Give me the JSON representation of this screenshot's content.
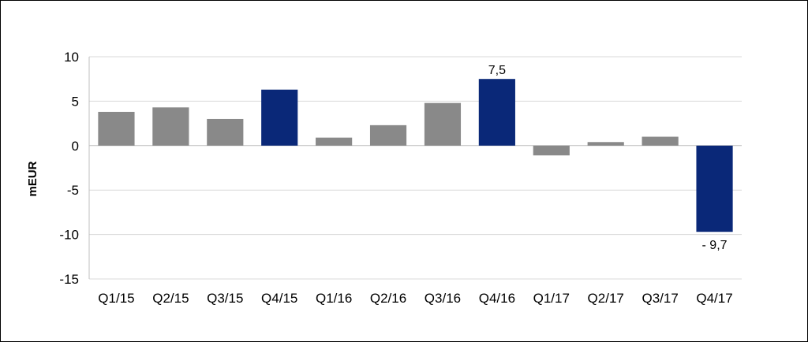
{
  "chart_data": {
    "type": "bar",
    "title": "",
    "xlabel": "",
    "ylabel": "mEUR",
    "ylim": [
      -15,
      10
    ],
    "yticks": [
      10,
      5,
      0,
      -5,
      -10,
      -15
    ],
    "grid": true,
    "categories": [
      "Q1/15",
      "Q2/15",
      "Q3/15",
      "Q4/15",
      "Q1/16",
      "Q2/16",
      "Q3/16",
      "Q4/16",
      "Q1/17",
      "Q2/17",
      "Q3/17",
      "Q4/17"
    ],
    "values": [
      3.8,
      4.3,
      3.0,
      6.3,
      0.9,
      2.3,
      4.8,
      7.5,
      -1.1,
      0.4,
      1.0,
      -9.7
    ],
    "highlight": [
      false,
      false,
      false,
      true,
      false,
      false,
      false,
      true,
      false,
      false,
      false,
      true
    ],
    "data_labels": [
      {
        "index": 7,
        "text": "7,5"
      },
      {
        "index": 11,
        "text": "- 9,7"
      }
    ],
    "colors": {
      "default": "#898989",
      "highlight": "#0a2878",
      "grid": "#d9d9d9",
      "axis": "#bfbfbf"
    }
  }
}
